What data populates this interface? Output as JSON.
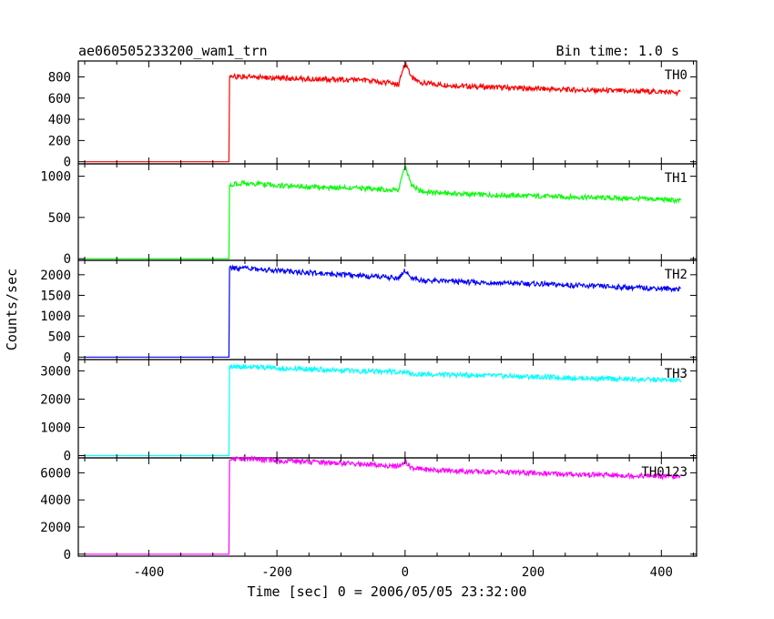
{
  "chart_data": {
    "type": "line",
    "title": "ae060505233200_wam1_trn",
    "subtitle": "Bin time: 1.0 s",
    "xlabel": "Time [sec] 0 = 2006/05/05 23:32:00",
    "ylabel": "Counts/sec",
    "xlim": [
      -510,
      455
    ],
    "xticks": [
      -400,
      -200,
      0,
      200,
      400
    ],
    "grid": false,
    "legend": "none",
    "panels": [
      {
        "name": "TH0",
        "color": "#ff0000",
        "ylim": [
          -20,
          950
        ],
        "yticks": [
          0,
          200,
          400,
          600,
          800
        ],
        "x": [
          -500,
          -275,
          -274,
          -250,
          -200,
          -150,
          -100,
          -50,
          -10,
          0,
          5,
          10,
          20,
          30,
          50,
          100,
          150,
          200,
          250,
          300,
          350,
          400,
          430
        ],
        "y": [
          0,
          0,
          800,
          805,
          790,
          780,
          775,
          760,
          735,
          930,
          880,
          790,
          760,
          740,
          730,
          710,
          700,
          690,
          680,
          672,
          665,
          660,
          650
        ]
      },
      {
        "name": "TH1",
        "color": "#00ff00",
        "ylim": [
          -20,
          1150
        ],
        "yticks": [
          0,
          500,
          1000
        ],
        "x": [
          -500,
          -275,
          -274,
          -250,
          -200,
          -150,
          -100,
          -50,
          -10,
          0,
          5,
          10,
          20,
          30,
          50,
          100,
          150,
          200,
          250,
          300,
          350,
          400,
          430
        ],
        "y": [
          0,
          0,
          900,
          920,
          890,
          870,
          860,
          850,
          830,
          1130,
          1000,
          900,
          830,
          810,
          800,
          780,
          770,
          760,
          750,
          740,
          730,
          720,
          700
        ]
      },
      {
        "name": "TH2",
        "color": "#0000ff",
        "ylim": [
          -60,
          2350
        ],
        "yticks": [
          0,
          500,
          1000,
          1500,
          2000
        ],
        "x": [
          -500,
          -275,
          -274,
          -250,
          -200,
          -150,
          -100,
          -50,
          -10,
          0,
          5,
          10,
          20,
          30,
          50,
          100,
          150,
          200,
          250,
          300,
          350,
          400,
          430
        ],
        "y": [
          0,
          0,
          2150,
          2160,
          2100,
          2050,
          2000,
          1960,
          1920,
          2120,
          2000,
          1900,
          1880,
          1860,
          1850,
          1820,
          1800,
          1780,
          1750,
          1720,
          1690,
          1670,
          1650
        ]
      },
      {
        "name": "TH3",
        "color": "#00ffff",
        "ylim": [
          -80,
          3400
        ],
        "yticks": [
          0,
          1000,
          2000,
          3000
        ],
        "x": [
          -500,
          -275,
          -274,
          -250,
          -200,
          -150,
          -100,
          -50,
          -10,
          0,
          5,
          10,
          20,
          30,
          50,
          100,
          150,
          200,
          250,
          300,
          350,
          400,
          430
        ],
        "y": [
          0,
          0,
          3150,
          3150,
          3100,
          3060,
          3020,
          2980,
          2950,
          2960,
          2920,
          2900,
          2890,
          2880,
          2870,
          2850,
          2820,
          2790,
          2760,
          2730,
          2700,
          2680,
          2650
        ]
      },
      {
        "name": "TH0123",
        "color": "#ff00ff",
        "ylim": [
          -150,
          7100
        ],
        "yticks": [
          0,
          2000,
          4000,
          6000
        ],
        "x": [
          -500,
          -275,
          -274,
          -250,
          -200,
          -150,
          -100,
          -50,
          -10,
          0,
          5,
          10,
          20,
          30,
          50,
          100,
          150,
          200,
          250,
          300,
          350,
          400,
          430
        ],
        "y": [
          0,
          0,
          7000,
          7050,
          6900,
          6800,
          6700,
          6600,
          6450,
          6900,
          6600,
          6400,
          6300,
          6250,
          6200,
          6100,
          6050,
          5980,
          5900,
          5850,
          5800,
          5750,
          5700
        ]
      }
    ]
  }
}
